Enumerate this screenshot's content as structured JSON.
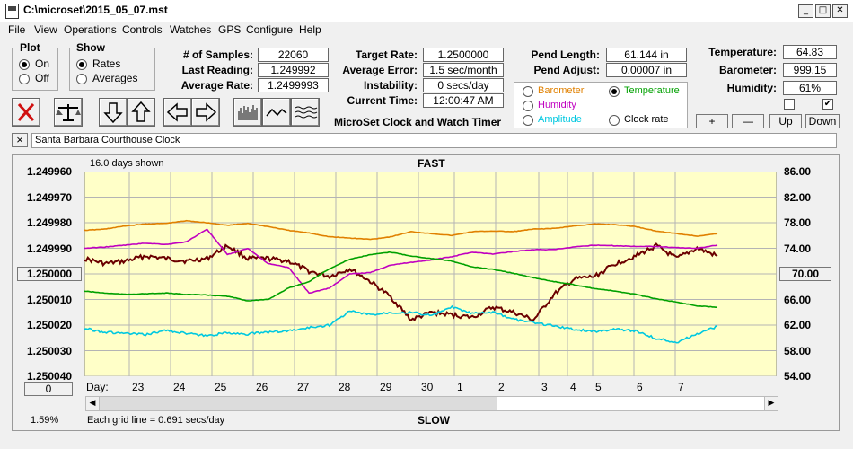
{
  "window": {
    "title": "C:\\microset\\2015_05_07.mst"
  },
  "menu": [
    "File",
    "View",
    "Operations",
    "Controls",
    "Watches",
    "GPS",
    "Configure",
    "Help"
  ],
  "plot_group": {
    "title": "Plot",
    "on": "On",
    "off": "Off",
    "selected": "On"
  },
  "show_group": {
    "title": "Show",
    "rates": "Rates",
    "averages": "Averages",
    "selected": "Rates"
  },
  "stats": {
    "samples_label": "# of Samples:",
    "samples": "22060",
    "last_reading_label": "Last Reading:",
    "last_reading": "1.249992",
    "average_rate_label": "Average Rate:",
    "average_rate": "1.2499993"
  },
  "targets": {
    "target_rate_label": "Target Rate:",
    "target_rate": "1.2500000",
    "average_error_label": "Average Error:",
    "average_error": "1.5 sec/month",
    "instability_label": "Instability:",
    "instability": "0 secs/day",
    "current_time_label": "Current Time:",
    "current_time": "12:00:47 AM",
    "app_name": "MicroSet Clock and Watch Timer"
  },
  "pendulum": {
    "length_label": "Pend Length:",
    "length": "61.144 in",
    "adjust_label": "Pend Adjust:",
    "adjust": "0.00007 in"
  },
  "sensors": {
    "temperature_label": "Temperature:",
    "temperature": "64.83",
    "barometer_label": "Barometer:",
    "barometer": "999.15",
    "humidity_label": "Humidity:",
    "humidity": "61%",
    "check1": false,
    "check2": true
  },
  "overlay": {
    "barometer": "Barometer",
    "temperature": "Temperature",
    "humidity": "Humidity",
    "amplitude": "Amplitude",
    "clock_rate": "Clock rate",
    "selected": "Temperature",
    "colors": {
      "barometer": "#e08000",
      "temperature": "#00a000",
      "humidity": "#c000c0",
      "amplitude": "#00c8e0",
      "clock_rate": "#000000"
    }
  },
  "scale_buttons": {
    "plus": "+",
    "minus": "—",
    "up": "Up",
    "down": "Down"
  },
  "clock_name": "Santa Barbara Courthouse Clock",
  "clear_button": "×",
  "chart_header": {
    "days_shown": "16.0 days shown",
    "fast": "FAST",
    "slow": "SLOW",
    "grid_note": "Each grid line = 0.691 secs/day",
    "percent": "1.59%",
    "day_label": "Day:",
    "left_box": "1.250000",
    "right_box": "70.00",
    "bottom_box": "0"
  },
  "chart_data": {
    "type": "line",
    "left_axis": {
      "ticks": [
        "1.249960",
        "1.249970",
        "1.249980",
        "1.249990",
        "1.250000",
        "1.250010",
        "1.250020",
        "1.250030",
        "1.250040"
      ],
      "min": 1.24996,
      "max": 1.25004,
      "inverted": true
    },
    "right_axis": {
      "ticks": [
        "86.00",
        "82.00",
        "78.00",
        "74.00",
        "70.00",
        "66.00",
        "62.00",
        "58.00",
        "54.00"
      ],
      "min": 54,
      "max": 86
    },
    "x_days": [
      "23",
      "24",
      "25",
      "26",
      "27",
      "28",
      "29",
      "30",
      "1",
      "2",
      "3",
      "4",
      "5",
      "6",
      "7"
    ],
    "x": [
      0,
      0.5,
      1,
      1.5,
      2,
      2.5,
      3,
      3.5,
      4,
      4.5,
      5,
      5.5,
      6,
      6.5,
      7,
      7.5,
      8,
      8.5,
      9,
      9.5,
      10,
      10.5,
      11,
      11.5,
      12,
      12.5,
      13,
      13.5,
      14,
      14.5,
      15,
      15.5
    ],
    "series": [
      {
        "name": "Clock rate",
        "color": "#6b0000",
        "values": [
          1.249994,
          1.249996,
          1.249995,
          1.249993,
          1.249994,
          1.249995,
          1.249994,
          1.249989,
          1.249994,
          1.249994,
          1.249995,
          1.249999,
          1.250001,
          1.249998,
          1.250003,
          1.250009,
          1.250018,
          1.250015,
          1.250016,
          1.250017,
          1.250013,
          1.250015,
          1.250018,
          1.250008,
          1.250002,
          1.250001,
          1.249996,
          1.249993,
          1.249989,
          1.249994,
          1.24999,
          1.249993
        ]
      },
      {
        "name": "Barometer",
        "color": "#e08000",
        "values": [
          76.8,
          77.0,
          77.5,
          77.8,
          77.9,
          78.3,
          78.0,
          77.6,
          77.9,
          77.4,
          76.8,
          76.4,
          75.8,
          75.6,
          75.4,
          75.8,
          76.6,
          76.3,
          76.0,
          76.6,
          76.7,
          76.6,
          77.0,
          77.1,
          77.5,
          77.8,
          77.7,
          77.4,
          76.7,
          76.3,
          75.9,
          76.3
        ]
      },
      {
        "name": "Humidity",
        "color": "#c000c0",
        "values": [
          74.0,
          74.2,
          74.5,
          74.8,
          74.6,
          75.0,
          77.0,
          73.0,
          74.0,
          71.6,
          71.0,
          67.0,
          67.8,
          70.0,
          70.2,
          71.4,
          71.8,
          72.2,
          72.7,
          73.4,
          73.1,
          73.5,
          73.8,
          73.8,
          74.2,
          74.5,
          74.4,
          74.3,
          74.3,
          74.1,
          74.0,
          74.5
        ]
      },
      {
        "name": "Temperature",
        "color": "#00a000",
        "values": [
          67.3,
          67.0,
          66.8,
          66.9,
          67.0,
          66.8,
          66.7,
          66.5,
          65.8,
          66.0,
          67.8,
          68.8,
          70.8,
          72.3,
          73.0,
          73.4,
          72.8,
          72.4,
          72.0,
          71.1,
          70.7,
          70.1,
          69.4,
          68.8,
          68.3,
          67.7,
          67.3,
          66.8,
          66.1,
          65.6,
          65.0,
          64.8
        ]
      },
      {
        "name": "Amplitude",
        "color": "#00c8e0",
        "values": [
          61.5,
          60.9,
          60.7,
          60.5,
          61.2,
          60.7,
          60.3,
          60.8,
          60.6,
          60.9,
          61.1,
          61.6,
          62.0,
          64.2,
          63.6,
          64.0,
          64.0,
          63.5,
          64.8,
          63.8,
          64.0,
          62.9,
          62.4,
          61.9,
          61.3,
          61.0,
          61.4,
          61.1,
          59.9,
          59.3,
          60.6,
          61.8
        ]
      }
    ]
  }
}
